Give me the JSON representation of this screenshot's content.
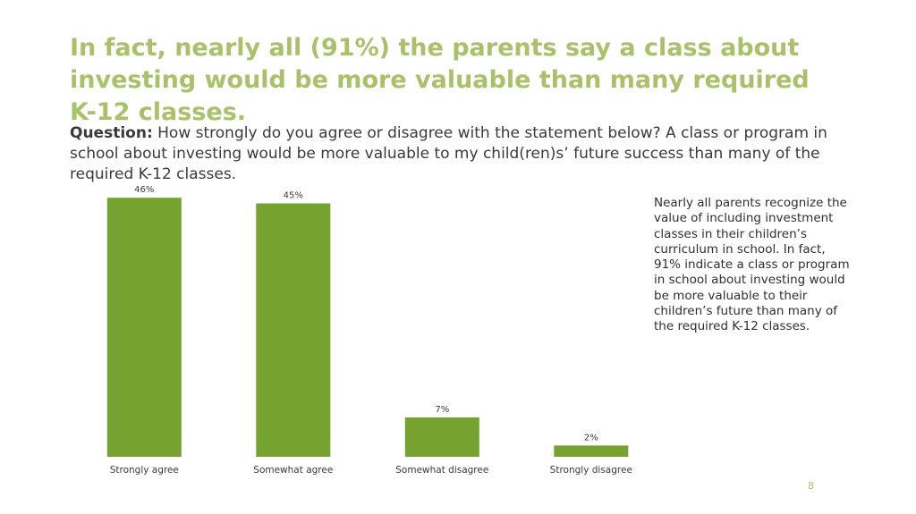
{
  "slide": {
    "headline": "In fact, nearly all (91%) the parents say a class about investing would be more valuable than many required K-12 classes.",
    "question_label": "Question:",
    "question_text": " How strongly do you agree or disagree with the statement below? A class or program in school about investing would be more valuable to my child(ren)s’ future success than many of the required K-12 classes.",
    "side_note": "Nearly all parents recognize the value of including investment classes in their children’s curriculum in school. In fact, 91% indicate a class or program in school about investing would be more valuable to their children’s future than many of the required K-12 classes.",
    "page_number": "8"
  },
  "colors": {
    "headline": "#a9c26a",
    "bar": "#76a22f",
    "text": "#3a3a3a",
    "page_number": "#a9c26a"
  },
  "chart_data": {
    "type": "bar",
    "categories": [
      "Strongly agree",
      "Somewhat agree",
      "Somewhat disagree",
      "Strongly disagree"
    ],
    "values": [
      46,
      45,
      7,
      2
    ],
    "data_labels": [
      "46%",
      "45%",
      "7%",
      "2%"
    ],
    "title": "",
    "xlabel": "",
    "ylabel": "",
    "ylim": [
      0,
      50
    ],
    "grid": false,
    "legend": "none",
    "y_axis_visible": false
  }
}
